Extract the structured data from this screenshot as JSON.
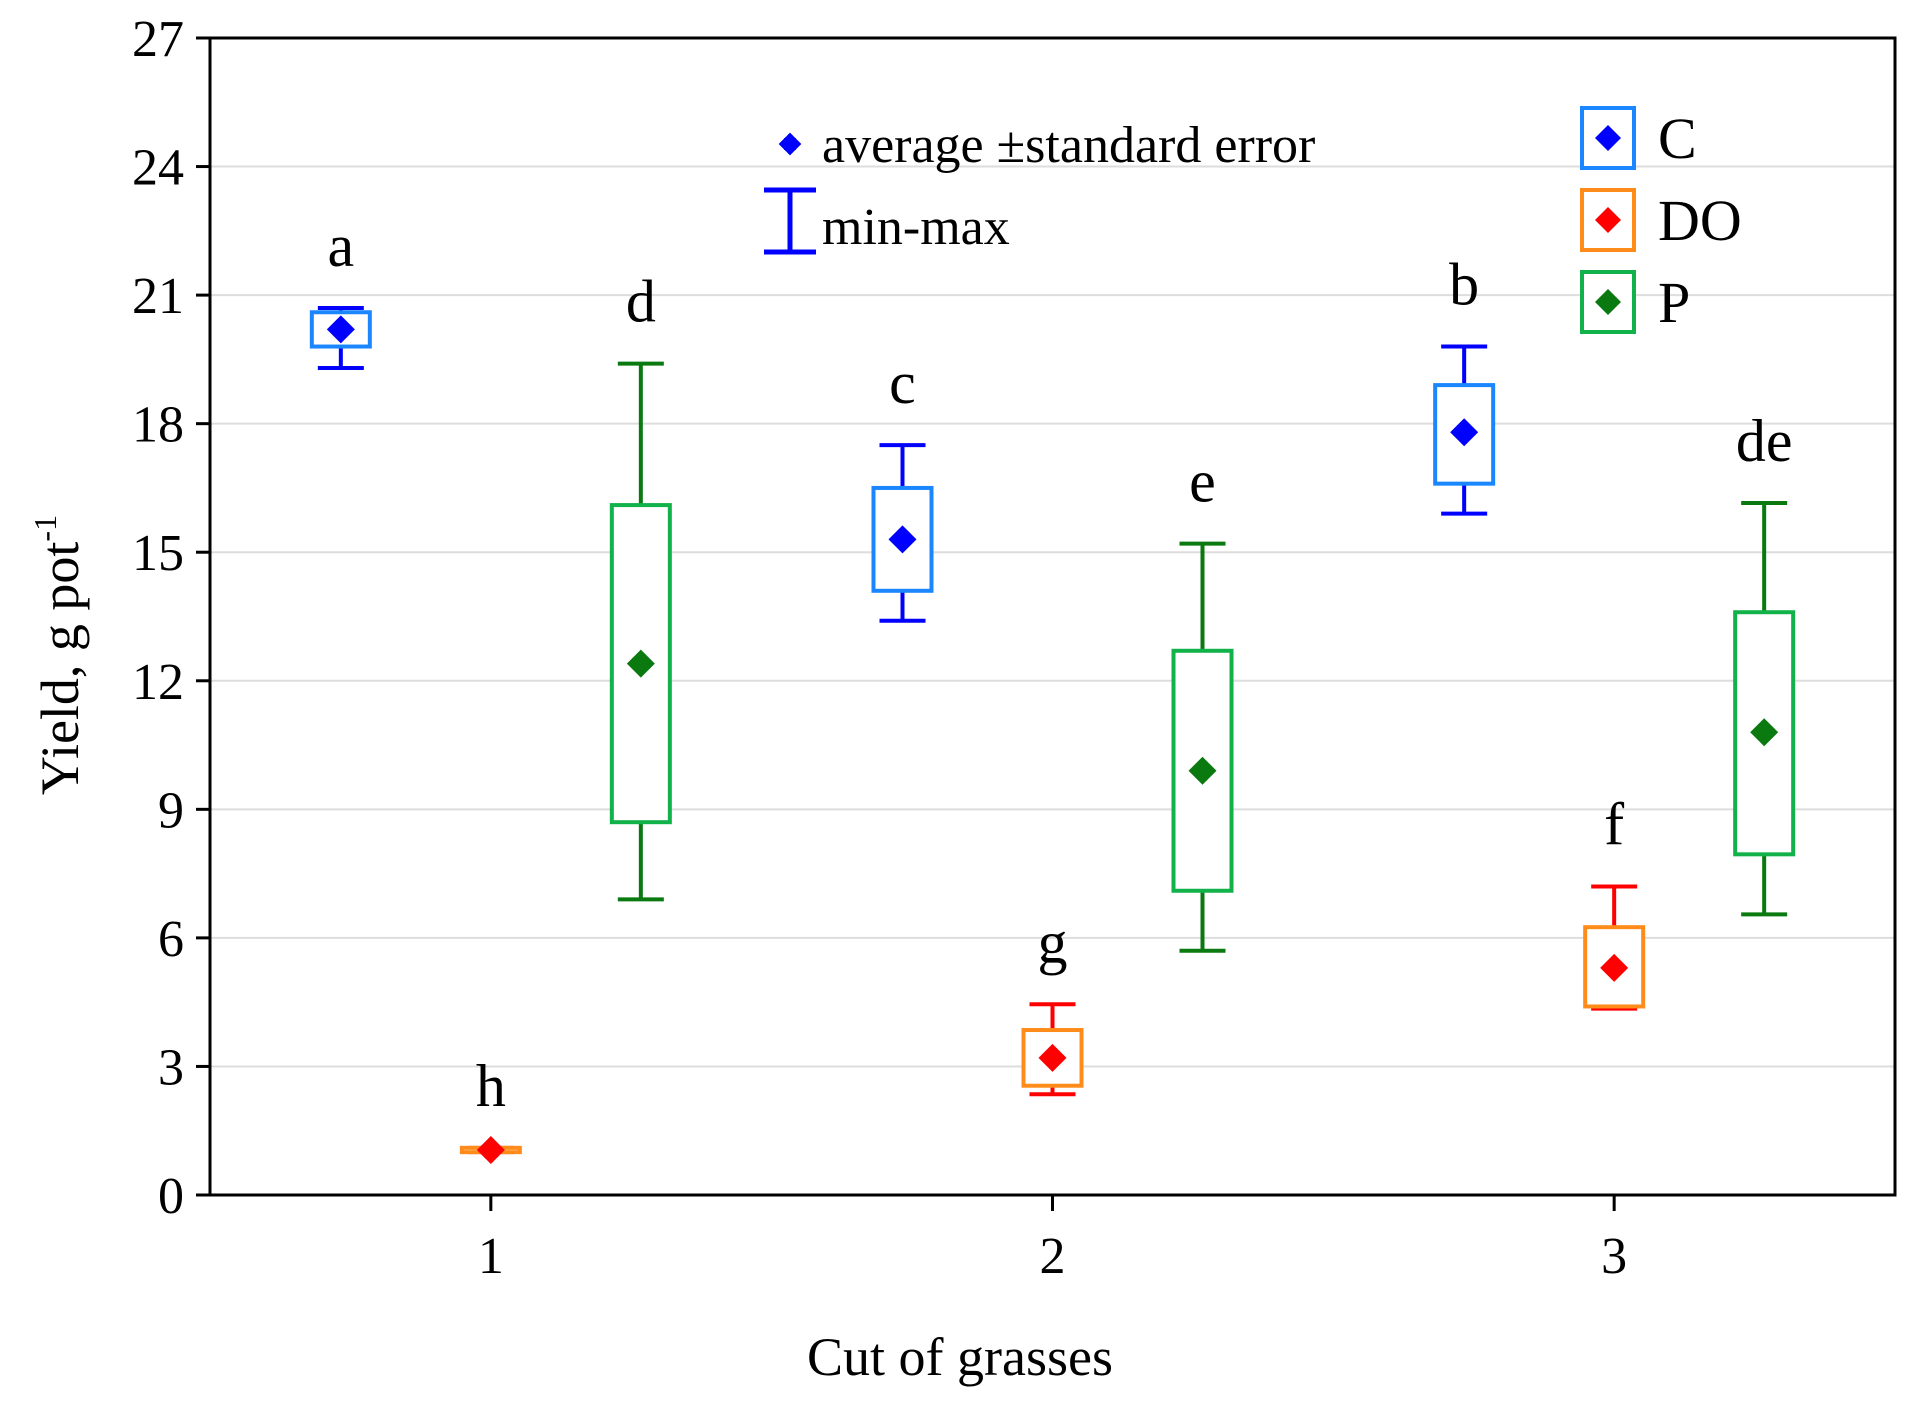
{
  "chart_data": {
    "type": "box",
    "xlabel": "Cut of grasses",
    "ylabel": "Yield, g pot",
    "ylabel_superscript": "-1",
    "ylim": [
      0,
      27
    ],
    "yticks": [
      0,
      3,
      6,
      9,
      12,
      15,
      18,
      21,
      24,
      27
    ],
    "categories": [
      "1",
      "2",
      "3"
    ],
    "grid": true,
    "legend_stat": {
      "mean_label": "average ±standard error",
      "range_label": "min-max"
    },
    "series": [
      {
        "name": "C",
        "box_color": "#1a86ff",
        "whisker_color": "#0000ff",
        "marker_color": "#0000ff",
        "points": [
          {
            "category": "1",
            "mean": 20.2,
            "se_low": 19.8,
            "se_high": 20.6,
            "min": 19.3,
            "max": 20.7,
            "letter": "a"
          },
          {
            "category": "2",
            "mean": 15.3,
            "se_low": 14.1,
            "se_high": 16.5,
            "min": 13.4,
            "max": 17.5,
            "letter": "c"
          },
          {
            "category": "3",
            "mean": 17.8,
            "se_low": 16.6,
            "se_high": 18.9,
            "min": 15.9,
            "max": 19.8,
            "letter": "b"
          }
        ]
      },
      {
        "name": "DO",
        "box_color": "#ff8c1a",
        "whisker_color": "#ff0000",
        "marker_color": "#ff0000",
        "points": [
          {
            "category": "1",
            "mean": 1.05,
            "se_low": 1.0,
            "se_high": 1.1,
            "min": 1.0,
            "max": 1.1,
            "letter": "h"
          },
          {
            "category": "2",
            "mean": 3.2,
            "se_low": 2.55,
            "se_high": 3.85,
            "min": 2.35,
            "max": 4.45,
            "letter": "g"
          },
          {
            "category": "3",
            "mean": 5.3,
            "se_low": 4.4,
            "se_high": 6.25,
            "min": 4.35,
            "max": 7.2,
            "letter": "f"
          }
        ]
      },
      {
        "name": "P",
        "box_color": "#12b24a",
        "whisker_color": "#0a7a10",
        "marker_color": "#0a7a10",
        "points": [
          {
            "category": "1",
            "mean": 12.4,
            "se_low": 8.7,
            "se_high": 16.1,
            "min": 6.9,
            "max": 19.4,
            "letter": "d"
          },
          {
            "category": "2",
            "mean": 9.9,
            "se_low": 7.1,
            "se_high": 12.7,
            "min": 5.7,
            "max": 15.2,
            "letter": "e"
          },
          {
            "category": "3",
            "mean": 10.8,
            "se_low": 7.95,
            "se_high": 13.6,
            "min": 6.55,
            "max": 16.15,
            "letter": "de"
          }
        ]
      }
    ]
  }
}
